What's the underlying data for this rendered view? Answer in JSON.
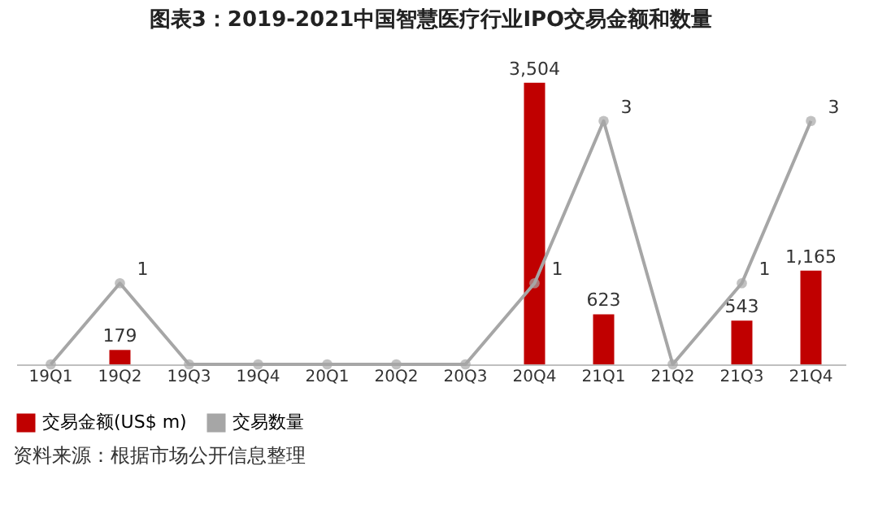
{
  "chart_data": {
    "type": "bar",
    "title": "图表3：2019-2021中国智慧医疗行业IPO交易金额和数量",
    "categories": [
      "19Q1",
      "19Q2",
      "19Q3",
      "19Q4",
      "20Q1",
      "20Q2",
      "20Q3",
      "20Q4",
      "21Q1",
      "21Q2",
      "21Q3",
      "21Q4"
    ],
    "series": [
      {
        "name": "交易金额(US$ m)",
        "color": "#c00000",
        "values": [
          0,
          179,
          0,
          0,
          0,
          0,
          0,
          3504,
          623,
          0,
          543,
          1165
        ],
        "value_labels": [
          null,
          "179",
          null,
          null,
          null,
          null,
          null,
          "3,504",
          "623",
          null,
          "543",
          "1,165"
        ]
      },
      {
        "name": "交易数量",
        "type": "line",
        "axis": "y2",
        "color": "#a6a6a6",
        "values": [
          0,
          1,
          0,
          0,
          0,
          0,
          0,
          1,
          3,
          0,
          1,
          3
        ],
        "value_labels": [
          null,
          "1",
          null,
          null,
          null,
          null,
          null,
          "1",
          "3",
          null,
          "1",
          "3"
        ]
      }
    ],
    "legend": "bottom",
    "marker": "circle",
    "grid": false,
    "annotations": [
      "资料来源：根据市场公开信息整理"
    ]
  }
}
